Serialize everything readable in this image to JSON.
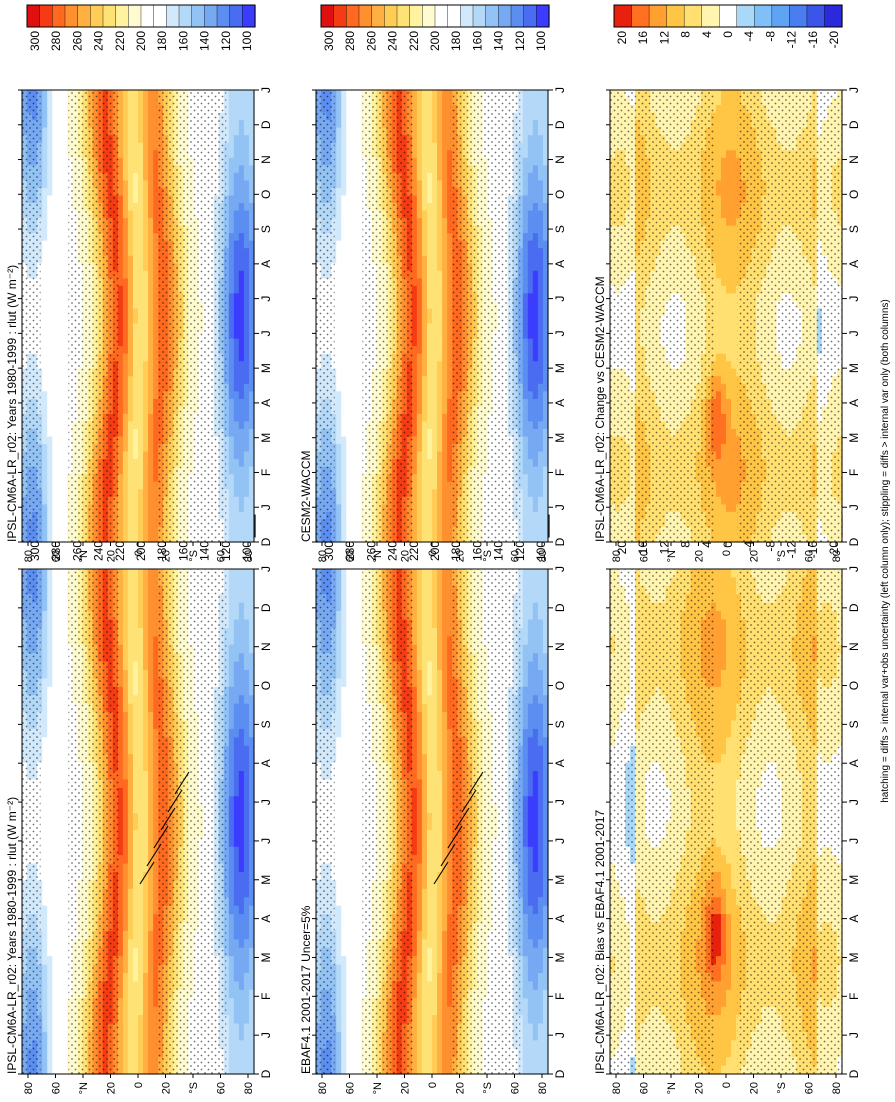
{
  "figure": {
    "caption": "hatching = diffs > internal var+obs uncertainty (left column only); stippling = diffs > internal var only (both columns)"
  },
  "colors": {
    "field_scale": [
      "#ffffff",
      "#3c3cff",
      "#4a6cf0",
      "#5b8ef0",
      "#77a9f3",
      "#93c3f5",
      "#b3d8f8",
      "#d2e8fb",
      "#ffffff",
      "#fffbd0",
      "#fff3a0",
      "#ffe275",
      "#ffcd55",
      "#ffb040",
      "#ff9030",
      "#ff6a20",
      "#f53b14",
      "#e01010"
    ],
    "diff_scale": [
      "#2a2adc",
      "#3a55e8",
      "#4a7ef0",
      "#5fa3f3",
      "#80c0f6",
      "#a9d8f9",
      "#ffffff",
      "#fff4b0",
      "#ffe070",
      "#ffc545",
      "#ffa030",
      "#ff7020",
      "#e8200e"
    ]
  },
  "chart_data": [
    {
      "type": "heatmap",
      "panel": "top-left",
      "title": "IPSL-CM6A-LR_r02: Years 1980-1999 : rlut (W m⁻²)",
      "x_months": [
        "D",
        "J",
        "F",
        "M",
        "A",
        "M",
        "J",
        "J",
        "A",
        "S",
        "O",
        "N",
        "D",
        "J"
      ],
      "y_ticks": [
        "80",
        "60",
        "°N",
        "20",
        "0",
        "20",
        "°S",
        "60",
        "80"
      ],
      "y_range": [
        -90,
        90
      ],
      "colorbar_ticks": [
        "300",
        "280",
        "260",
        "240",
        "220",
        "200",
        "180",
        "160",
        "140",
        "120",
        "100"
      ],
      "peak_lat_north": 20,
      "peak_lat_south": -15
    },
    {
      "type": "heatmap",
      "panel": "top-right",
      "title": "IPSL-CM6A-LR_r02: Years 1980-1999 : rlut (W m⁻²)",
      "x_months": [
        "D",
        "J",
        "F",
        "M",
        "A",
        "M",
        "J",
        "J",
        "A",
        "S",
        "O",
        "N",
        "D",
        "J"
      ],
      "y_ticks": [
        "80",
        "60",
        "°N",
        "20",
        "0",
        "20",
        "°S",
        "60",
        "80"
      ],
      "y_range": [
        -90,
        90
      ],
      "colorbar_ticks": [
        "300",
        "280",
        "260",
        "240",
        "220",
        "200",
        "180",
        "160",
        "140",
        "120",
        "100"
      ]
    },
    {
      "type": "heatmap",
      "panel": "middle-left",
      "title": "EBAF4.1 2001-2017 Uncer=5%",
      "x_months": [
        "D",
        "J",
        "F",
        "M",
        "A",
        "M",
        "J",
        "J",
        "A",
        "S",
        "O",
        "N",
        "D",
        "J"
      ],
      "y_ticks": [
        "80",
        "60",
        "°N",
        "20",
        "0",
        "20",
        "°S",
        "60",
        "80"
      ],
      "y_range": [
        -90,
        90
      ],
      "colorbar_ticks": [
        "300",
        "280",
        "260",
        "240",
        "220",
        "200",
        "180",
        "160",
        "140",
        "120",
        "100"
      ]
    },
    {
      "type": "heatmap",
      "panel": "middle-right",
      "title": "CESM2-WACCM",
      "x_months": [
        "D",
        "J",
        "F",
        "M",
        "A",
        "M",
        "J",
        "J",
        "A",
        "S",
        "O",
        "N",
        "D",
        "J"
      ],
      "y_ticks": [
        "80",
        "60",
        "°N",
        "20",
        "0",
        "20",
        "°S",
        "60",
        "80"
      ],
      "y_range": [
        -90,
        90
      ],
      "colorbar_ticks": [
        "300",
        "280",
        "260",
        "240",
        "220",
        "200",
        "180",
        "160",
        "140",
        "120",
        "100"
      ]
    },
    {
      "type": "heatmap",
      "panel": "bottom-left",
      "title": "IPSL-CM6A-LR_r02: Bias vs EBAF4.1 2001-2017",
      "x_months": [
        "D",
        "J",
        "F",
        "M",
        "A",
        "M",
        "J",
        "J",
        "A",
        "S",
        "O",
        "N",
        "D",
        "J"
      ],
      "y_ticks": [
        "80",
        "60",
        "°N",
        "20",
        "0",
        "20",
        "°S",
        "60",
        "80"
      ],
      "y_range": [
        -90,
        90
      ],
      "colorbar_ticks": [
        "20",
        "16",
        "12",
        "8",
        "4",
        "0",
        "-4",
        "-8",
        "-12",
        "-16",
        "-20"
      ]
    },
    {
      "type": "heatmap",
      "panel": "bottom-right",
      "title": "IPSL-CM6A-LR_r02: Change vs CESM2-WACCM",
      "x_months": [
        "D",
        "J",
        "F",
        "M",
        "A",
        "M",
        "J",
        "J",
        "A",
        "S",
        "O",
        "N",
        "D",
        "J"
      ],
      "y_ticks": [
        "80",
        "60",
        "°N",
        "20",
        "0",
        "20",
        "°S",
        "60",
        "80"
      ],
      "y_range": [
        -90,
        90
      ],
      "colorbar_ticks": [
        "20",
        "16",
        "12",
        "8",
        "4",
        "0",
        "-4",
        "-8",
        "-12",
        "-16",
        "-20"
      ]
    }
  ]
}
